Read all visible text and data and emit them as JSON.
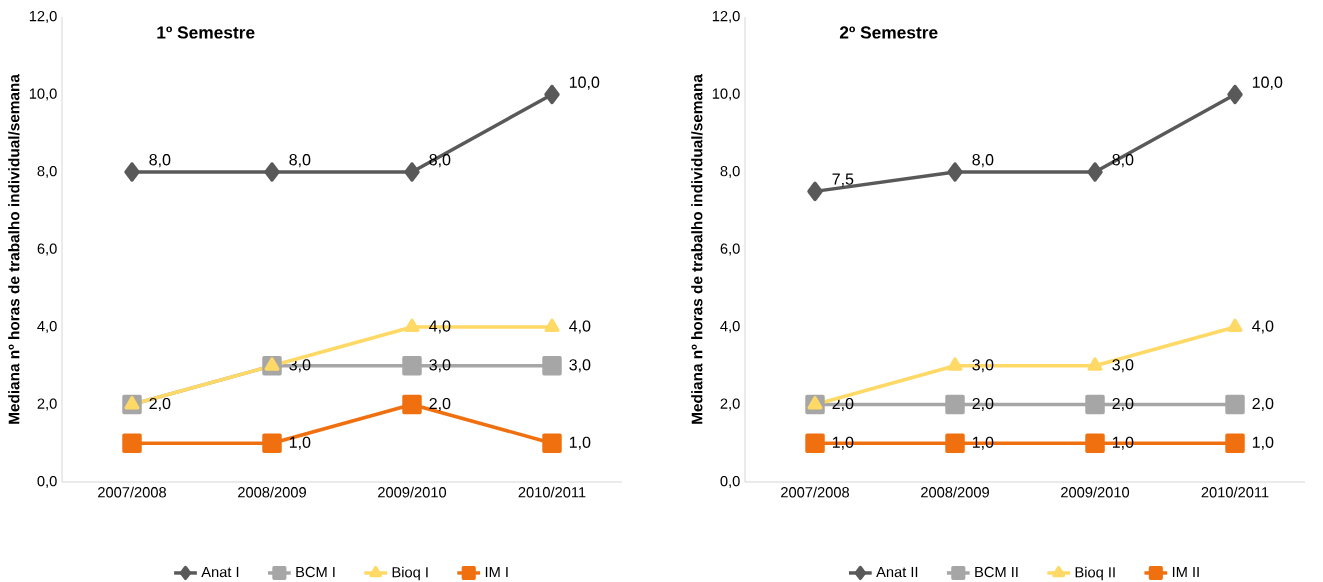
{
  "chart_data": [
    {
      "type": "line",
      "title": "1º Semestre",
      "ylabel": "Mediana nº horas de trabalho individual/semana",
      "categories": [
        "2007/2008",
        "2008/2009",
        "2009/2010",
        "2010/2011"
      ],
      "ylim": [
        0,
        12
      ],
      "yticks": [
        {
          "value": 0,
          "label": "0,0"
        },
        {
          "value": 2,
          "label": "2,0"
        },
        {
          "value": 4,
          "label": "4,0"
        },
        {
          "value": 6,
          "label": "6,0"
        },
        {
          "value": 8,
          "label": "8,0"
        },
        {
          "value": 10,
          "label": "10,0"
        },
        {
          "value": 12,
          "label": "12,0"
        }
      ],
      "legend": "bottom",
      "series": [
        {
          "name": "Anat I",
          "color": "#595959",
          "marker": "diamond",
          "values": [
            8,
            8,
            8,
            10
          ],
          "value_labels": [
            "8,0",
            "8,0",
            "8,0",
            "10,0"
          ]
        },
        {
          "name": "BCM I",
          "color": "#a6a6a6",
          "marker": "square",
          "values": [
            2,
            3,
            3,
            3
          ],
          "value_labels": [
            null,
            "3,0",
            "3,0",
            "3,0"
          ]
        },
        {
          "name": "Bioq I",
          "color": "#ffd966",
          "marker": "triangle",
          "values": [
            2,
            3,
            4,
            4
          ],
          "value_labels": [
            "2,0",
            null,
            "4,0",
            "4,0"
          ]
        },
        {
          "name": "IM I",
          "color": "#f07010",
          "marker": "square",
          "values": [
            1,
            1,
            2,
            1
          ],
          "value_labels": [
            null,
            "1,0",
            "2,0",
            "1,0"
          ]
        }
      ]
    },
    {
      "type": "line",
      "title": "2º Semestre",
      "ylabel": "Mediana nº horas de trabalho individual/semana",
      "categories": [
        "2007/2008",
        "2008/2009",
        "2009/2010",
        "2010/2011"
      ],
      "ylim": [
        0,
        12
      ],
      "yticks": [
        {
          "value": 0,
          "label": "0,0"
        },
        {
          "value": 2,
          "label": "2,0"
        },
        {
          "value": 4,
          "label": "4,0"
        },
        {
          "value": 6,
          "label": "6,0"
        },
        {
          "value": 8,
          "label": "8,0"
        },
        {
          "value": 10,
          "label": "10,0"
        },
        {
          "value": 12,
          "label": "12,0"
        }
      ],
      "legend": "bottom",
      "series": [
        {
          "name": "Anat II",
          "color": "#595959",
          "marker": "diamond",
          "values": [
            7.5,
            8,
            8,
            10
          ],
          "value_labels": [
            "7,5",
            "8,0",
            "8,0",
            "10,0"
          ]
        },
        {
          "name": "BCM II",
          "color": "#a6a6a6",
          "marker": "square",
          "values": [
            2,
            2,
            2,
            2
          ],
          "value_labels": [
            "2,0",
            "2,0",
            "2,0",
            "2,0"
          ]
        },
        {
          "name": "Bioq II",
          "color": "#ffd966",
          "marker": "triangle",
          "values": [
            2,
            3,
            3,
            4
          ],
          "value_labels": [
            null,
            "3,0",
            "3,0",
            "4,0"
          ]
        },
        {
          "name": "IM II",
          "color": "#f07010",
          "marker": "square",
          "values": [
            1,
            1,
            1,
            1
          ],
          "value_labels": [
            "1,0",
            "1,0",
            "1,0",
            "1,0"
          ]
        }
      ]
    }
  ]
}
